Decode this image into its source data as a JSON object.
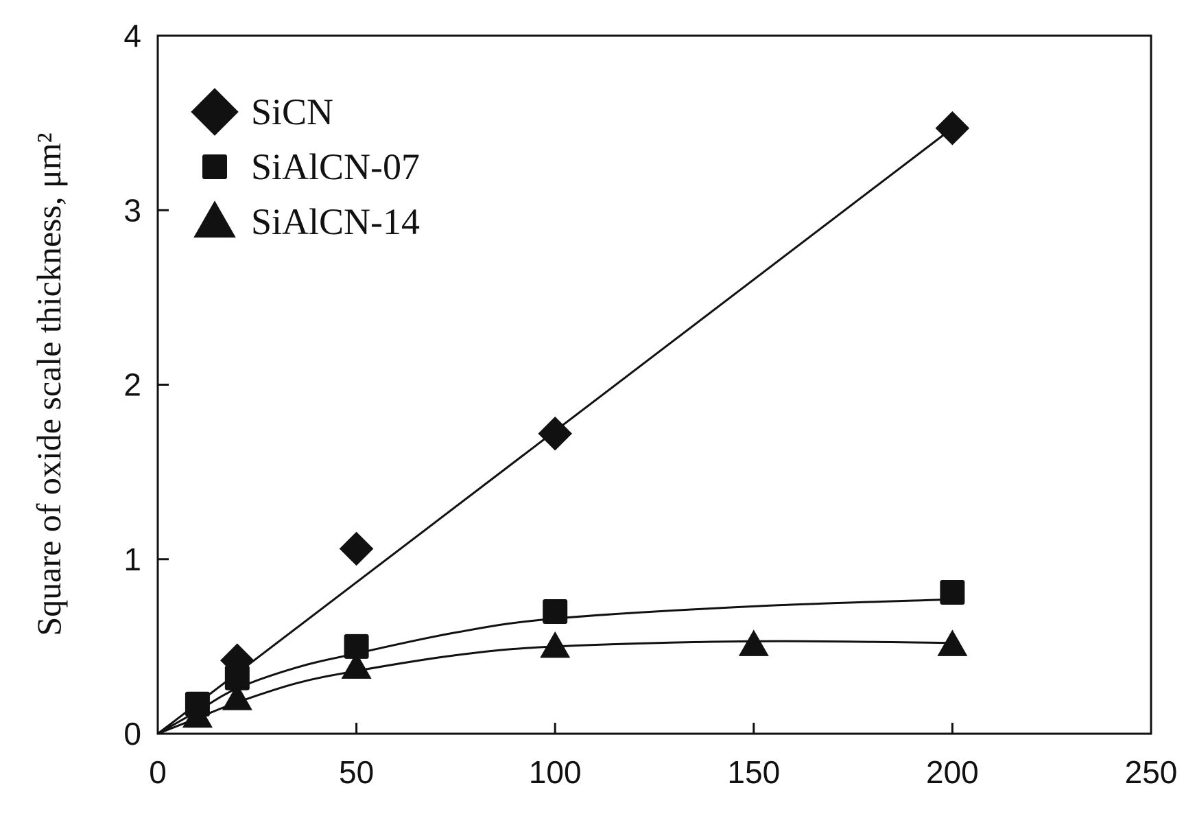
{
  "chart_data": {
    "type": "scatter",
    "title": "",
    "xlabel": "",
    "ylabel": "Square of oxide scale thickness, μm²",
    "xlim": [
      0,
      250
    ],
    "ylim": [
      0,
      4
    ],
    "x_ticks": [
      "0",
      "50",
      "100",
      "150",
      "200",
      "250"
    ],
    "y_ticks": [
      "0",
      "1",
      "2",
      "3",
      "4"
    ],
    "grid": false,
    "legend_position": "top-left",
    "series": [
      {
        "name": "SiCN",
        "marker": "diamond",
        "points": [
          [
            20,
            0.42
          ],
          [
            50,
            1.06
          ],
          [
            100,
            1.72
          ],
          [
            200,
            3.47
          ]
        ],
        "fit_line": [
          [
            0,
            0
          ],
          [
            200,
            3.47
          ]
        ]
      },
      {
        "name": "SiAlCN-07",
        "marker": "square",
        "points": [
          [
            10,
            0.17
          ],
          [
            20,
            0.32
          ],
          [
            50,
            0.5
          ],
          [
            100,
            0.7
          ],
          [
            200,
            0.81
          ]
        ],
        "fit_line": [
          [
            0,
            0
          ],
          [
            10,
            0.13
          ],
          [
            20,
            0.26
          ],
          [
            35,
            0.38
          ],
          [
            50,
            0.46
          ],
          [
            75,
            0.58
          ],
          [
            100,
            0.66
          ],
          [
            150,
            0.73
          ],
          [
            200,
            0.77
          ]
        ]
      },
      {
        "name": "SiAlCN-14",
        "marker": "triangle",
        "points": [
          [
            10,
            0.1
          ],
          [
            20,
            0.2
          ],
          [
            50,
            0.38
          ],
          [
            100,
            0.5
          ],
          [
            150,
            0.51
          ],
          [
            200,
            0.51
          ]
        ],
        "fit_line": [
          [
            0,
            0
          ],
          [
            10,
            0.09
          ],
          [
            20,
            0.18
          ],
          [
            35,
            0.29
          ],
          [
            50,
            0.36
          ],
          [
            75,
            0.45
          ],
          [
            100,
            0.5
          ],
          [
            150,
            0.53
          ],
          [
            200,
            0.52
          ]
        ]
      }
    ],
    "colors": {
      "ink": "#111111",
      "background": "#ffffff"
    }
  }
}
